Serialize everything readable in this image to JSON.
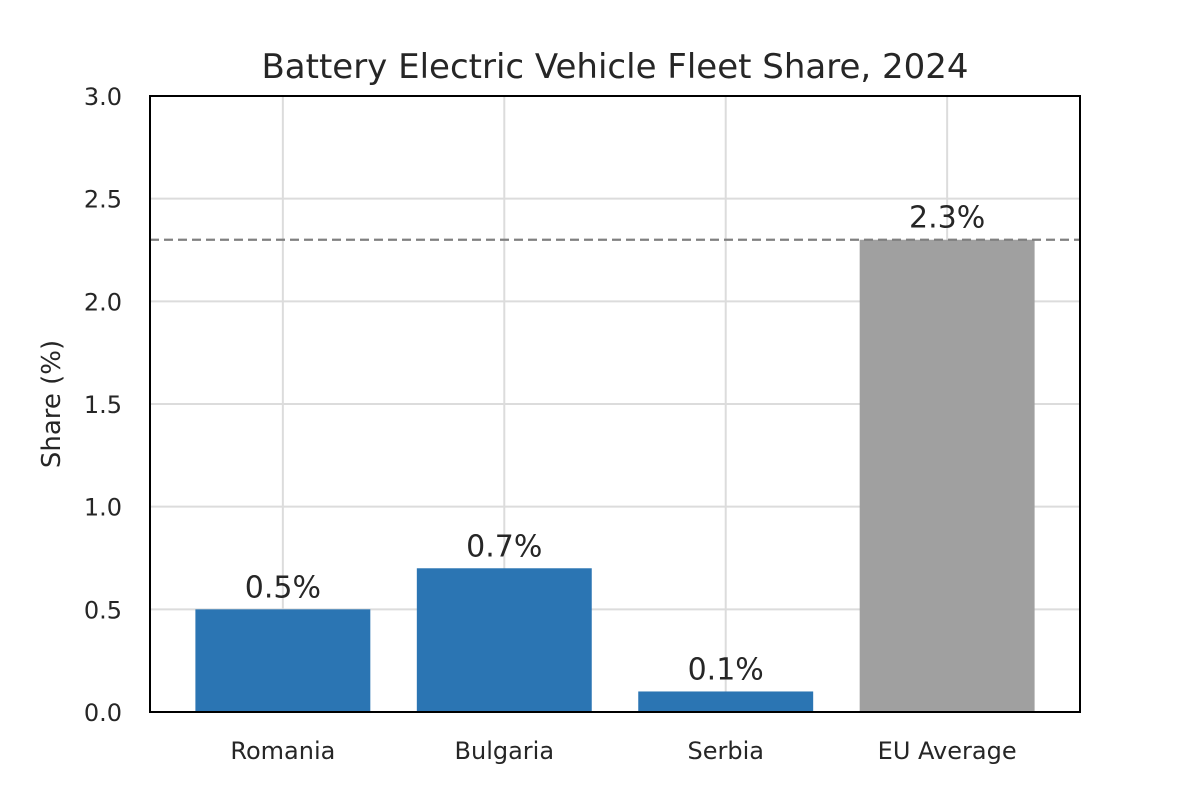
{
  "chart_data": {
    "type": "bar",
    "title": "Battery Electric Vehicle Fleet Share, 2024",
    "xlabel": "",
    "ylabel": "Share (%)",
    "ylim": [
      0,
      3.0
    ],
    "yticks": [
      0.0,
      0.5,
      1.0,
      1.5,
      2.0,
      2.5,
      3.0
    ],
    "ytick_labels": [
      "0.0",
      "0.5",
      "1.0",
      "1.5",
      "2.0",
      "2.5",
      "3.0"
    ],
    "grid": true,
    "categories": [
      "Romania",
      "Bulgaria",
      "Serbia",
      "EU Average"
    ],
    "values": [
      0.5,
      0.7,
      0.1,
      2.3
    ],
    "data_labels": [
      "0.5%",
      "0.7%",
      "0.1%",
      "2.3%"
    ],
    "bar_colors": [
      "#2b75b3",
      "#2b75b3",
      "#2b75b3",
      "#a0a0a0"
    ],
    "reference_line": {
      "value": 2.3,
      "style": "dashed",
      "color": "#808080"
    },
    "colors": {
      "grid": "#dcdcdc",
      "axis": "#000000",
      "text": "#262626"
    }
  }
}
